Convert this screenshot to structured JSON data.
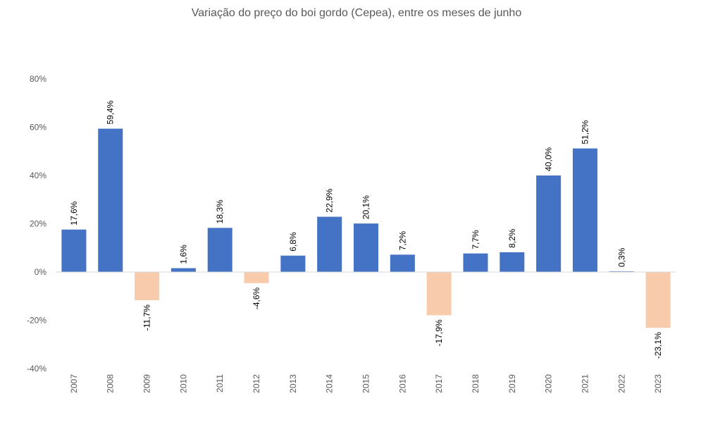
{
  "chart_data": {
    "type": "bar",
    "title": "Variação do preço do boi gordo (Cepea), entre os meses de junho",
    "xlabel": "",
    "ylabel": "",
    "categories": [
      "2007",
      "2008",
      "2009",
      "2010",
      "2011",
      "2012",
      "2013",
      "2014",
      "2015",
      "2016",
      "2017",
      "2018",
      "2019",
      "2020",
      "2021",
      "2022",
      "2023"
    ],
    "values": [
      17.6,
      59.4,
      -11.7,
      1.6,
      18.3,
      -4.6,
      6.8,
      22.9,
      20.1,
      7.2,
      -17.9,
      7.7,
      8.2,
      40.0,
      51.2,
      0.3,
      -23.1
    ],
    "data_labels": [
      "17,6%",
      "59,4%",
      "-11,7%",
      "1,6%",
      "18,3%",
      "-4,6%",
      "6,8%",
      "22,9%",
      "20,1%",
      "7,2%",
      "-17,9%",
      "7,7%",
      "8,2%",
      "40,0%",
      "51,2%",
      "0,3%",
      "-23,1%"
    ],
    "ylim": [
      -40,
      80
    ],
    "yticks": [
      -40,
      -20,
      0,
      20,
      40,
      60,
      80
    ],
    "ytick_labels": [
      "-40%",
      "-20%",
      "0%",
      "20%",
      "40%",
      "60%",
      "80%"
    ],
    "grid": false,
    "legend": "none",
    "colors": {
      "positive": "#4472C4",
      "negative": "#F8CBAD",
      "axis": "#D9D9D9"
    }
  }
}
